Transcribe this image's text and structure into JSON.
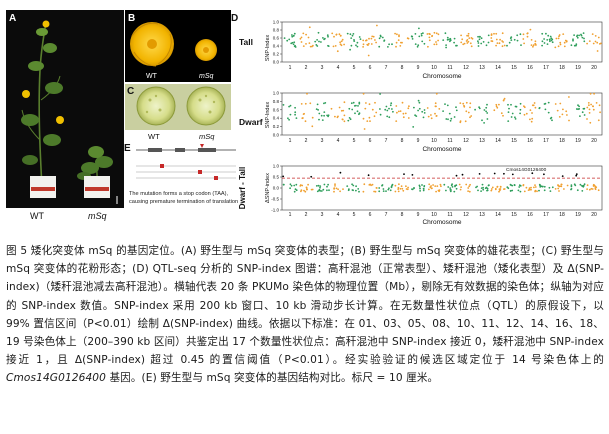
{
  "panels": {
    "A": {
      "letter": "A",
      "label_wt": "WT",
      "label_msq": "mSq"
    },
    "B": {
      "letter": "B",
      "label_wt": "WT",
      "label_msq": "mSq"
    },
    "C": {
      "letter": "C",
      "label_wt": "WT",
      "label_msq": "mSq"
    },
    "D": {
      "letter": "D",
      "tall": {
        "row_label": "Tall",
        "ylabel": "SNP-Index",
        "xlabel": "Chromosome"
      },
      "dwarf": {
        "row_label": "Dwarf",
        "ylabel": "SNP-Index",
        "xlabel": "Chromosome"
      },
      "delta": {
        "row_label": "Dwarf - Tall",
        "ylabel": "ΔSNP-index",
        "xlabel": "Chromosome",
        "annotation": "Cmos14G0126400"
      },
      "chromosomes": [
        "1",
        "2",
        "3",
        "4",
        "5",
        "6",
        "7",
        "8",
        "9",
        "10",
        "11",
        "12",
        "13",
        "14",
        "15",
        "16",
        "17",
        "18",
        "19",
        "20"
      ],
      "ticks_tall": [
        "1.0",
        "0.8",
        "0.6",
        "0.4",
        "0.2",
        "0.0"
      ],
      "ticks_delta": [
        "1.0",
        "0.5",
        "0.0",
        "-0.5",
        "-1.0"
      ]
    },
    "E": {
      "letter": "E",
      "note_line1": "The mutation forms a stop codon (TAA),",
      "note_line2": "causing premature termination of translation"
    }
  },
  "chart_data": [
    {
      "type": "scatter",
      "title": "Tall",
      "ylabel": "SNP-Index",
      "xlabel": "Chromosome",
      "ylim": [
        0,
        1
      ],
      "x": [
        "1",
        "2",
        "3",
        "4",
        "5",
        "6",
        "7",
        "8",
        "9",
        "10",
        "11",
        "12",
        "13",
        "14",
        "15",
        "16",
        "17",
        "18",
        "19",
        "20"
      ],
      "colors": [
        "#2e9e5b",
        "#f0a030"
      ]
    },
    {
      "type": "scatter",
      "title": "Dwarf",
      "ylabel": "SNP-Index",
      "xlabel": "Chromosome",
      "ylim": [
        0,
        1
      ],
      "x": [
        "1",
        "2",
        "3",
        "4",
        "5",
        "6",
        "7",
        "8",
        "9",
        "10",
        "11",
        "12",
        "13",
        "14",
        "15",
        "16",
        "17",
        "18",
        "19",
        "20"
      ],
      "colors": [
        "#2e9e5b",
        "#f0a030"
      ]
    },
    {
      "type": "scatter",
      "title": "Dwarf - Tall",
      "ylabel": "ΔSNP-index",
      "xlabel": "Chromosome",
      "ylim": [
        -1,
        1
      ],
      "threshold": 0.45,
      "annotation": "Cmos14G0126400",
      "x": [
        "1",
        "2",
        "3",
        "4",
        "5",
        "6",
        "7",
        "8",
        "9",
        "10",
        "11",
        "12",
        "13",
        "14",
        "15",
        "16",
        "17",
        "18",
        "19",
        "20"
      ],
      "colors": [
        "#2e9e5b",
        "#f0a030",
        "#d62728"
      ]
    }
  ],
  "caption": {
    "part1": "图 5  矮化突变体 mSq 的基因定位。(A) 野生型与 mSq 突变体的表型；(B) 野生型与 mSq 突变体的雄花表型；(C) 野生型与 mSq 突变体的花粉形态；(D) QTL-seq 分析的 SNP-index 图谱：高秆混池（正常表型）、矮秆混池（矮化表型）及 Δ(SNP-index)（矮秆混池减去高秆混池）。横轴代表 20 条 PKUMo 染色体的物理位置（Mb），剔除无有效数据的染色体；纵轴为对应的 SNP-index 数值。SNP-index 采用 200 kb 窗口、10 kb 滑动步长计算。在无数量性状位点（QTL）的原假设下，以 99% 置信区间（P<0.01）绘制 Δ(SNP-index) 曲线。依据以下标准：在 01、03、05、08、10、11、12、14、16、18、19 号染色体上（200–390 kb 区间）共鉴定出 17 个数量性状位点：高秆混池中 SNP-index 接近 0，矮秆混池中 SNP-index 接近 1，且 Δ(SNP-index) 超过 0.45 的置信阈值（P<0.01）。经实验验证的候选区域定位于 14 号染色体上的 ",
    "gene": "Cmos14G0126400",
    "part2": " 基因。(E) 野生型与 mSq 突变体的基因结构对比。标尺 = 10 厘米。"
  }
}
